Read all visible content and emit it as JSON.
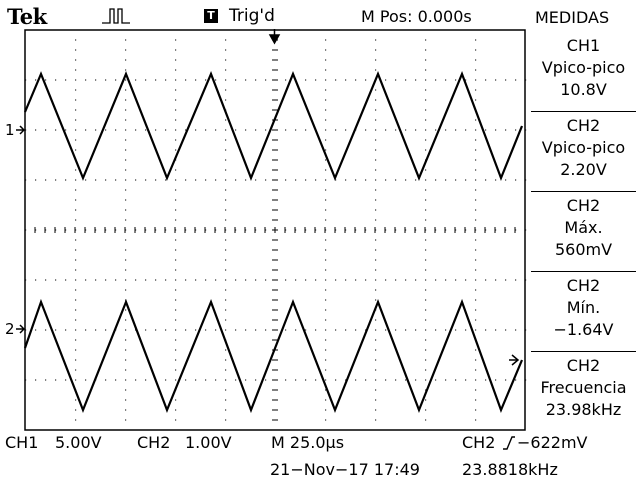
{
  "header": {
    "brand": "Tek",
    "trigger_badge": "T",
    "trigger_status": "Trig'd",
    "m_pos": "M Pos: 0.000s",
    "menu_title": "MEDIDAS"
  },
  "markers": {
    "ch1": "1",
    "ch2": "2"
  },
  "measurements": [
    {
      "channel": "CH1",
      "label": "Vpico-pico",
      "value": "10.8V"
    },
    {
      "channel": "CH2",
      "label": "Vpico-pico",
      "value": "2.20V"
    },
    {
      "channel": "CH2",
      "label": "Máx.",
      "value": "560mV"
    },
    {
      "channel": "CH2",
      "label": "Mín.",
      "value": "−1.64V"
    },
    {
      "channel": "CH2",
      "label": "Frecuencia",
      "value": "23.98kHz"
    }
  ],
  "footer": {
    "ch1_label": "CH1",
    "ch1_scale": "5.00V",
    "ch2_label": "CH2",
    "ch2_scale": "1.00V",
    "timebase": "M 25.0µs",
    "trigger_source": "CH2",
    "trigger_level": "−622mV",
    "date_time": "21−Nov−17 17:49",
    "frequency": "23.8818kHz"
  },
  "colors": {
    "trace": "#000000",
    "background": "#ffffff"
  }
}
